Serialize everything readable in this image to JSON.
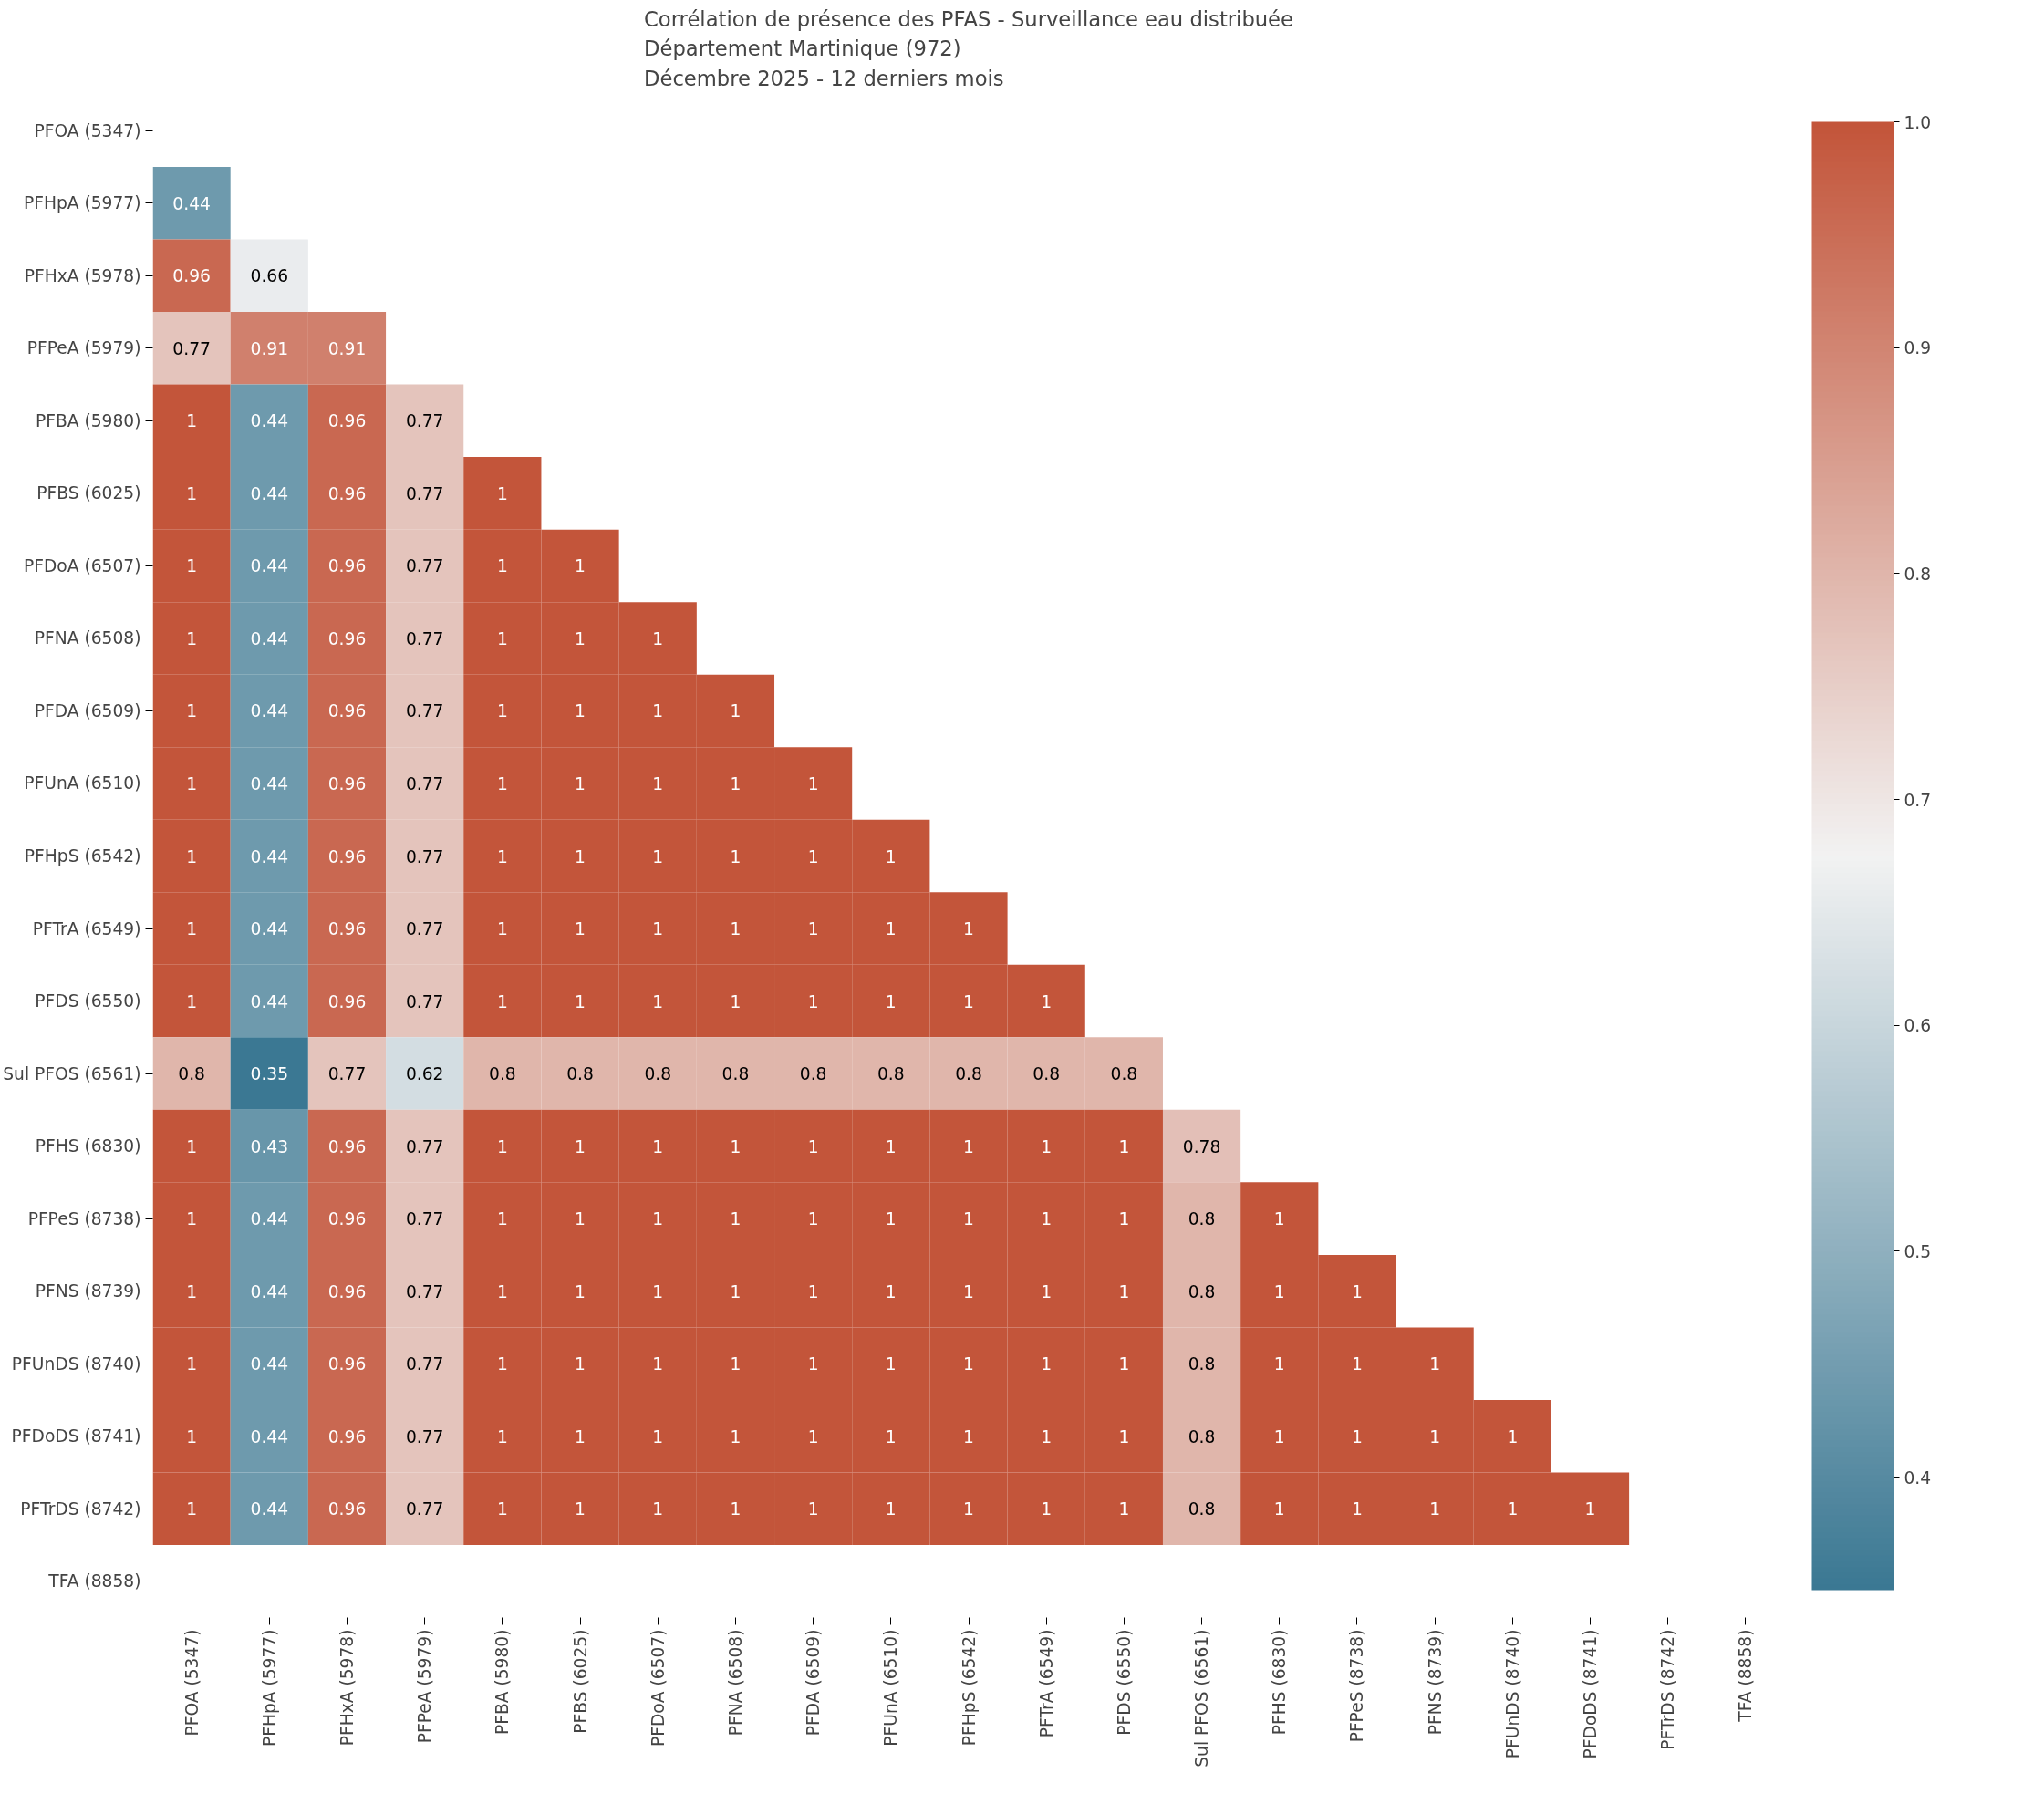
{
  "chart_data": {
    "type": "heatmap",
    "title": "Corrélation de présence des PFAS - Surveillance eau distribuée\nDépartement Martinique (972)\nDécembre 2025 - 12 derniers mois",
    "categories": [
      "PFOA (5347)",
      "PFHpA (5977)",
      "PFHxA (5978)",
      "PFPeA (5979)",
      "PFBA (5980)",
      "PFBS (6025)",
      "PFDoA (6507)",
      "PFNA (6508)",
      "PFDA (6509)",
      "PFUnA (6510)",
      "PFHpS (6542)",
      "PFTrA (6549)",
      "PFDS (6550)",
      "Sul PFOS (6561)",
      "PFHS (6830)",
      "PFPeS (8738)",
      "PFNS (8739)",
      "PFUnDS (8740)",
      "PFDoDS (8741)",
      "PFTrDS (8742)",
      "TFA (8858)"
    ],
    "y_categories": [
      "PFOA (5347)",
      "PFHpA (5977)",
      "PFHxA (5978)",
      "PFPeA (5979)",
      "PFBA (5980)",
      "PFBS (6025)",
      "PFDoA (6507)",
      "PFNA (6508)",
      "PFDA (6509)",
      "PFUnA (6510)",
      "PFHpS (6542)",
      "PFTrA (6549)",
      "PFDS (6550)",
      "Sul PFOS (6561)",
      "PFHS (6830)",
      "PFPeS (8738)",
      "PFNS (8739)",
      "PFUnDS (8740)",
      "PFDoDS (8741)",
      "PFTrDS (8742)",
      "TFA (8858)"
    ],
    "cells": [
      [
        null,
        null,
        null,
        null,
        null,
        null,
        null,
        null,
        null,
        null,
        null,
        null,
        null,
        null,
        null,
        null,
        null,
        null,
        null,
        null,
        null
      ],
      [
        0.44,
        null,
        null,
        null,
        null,
        null,
        null,
        null,
        null,
        null,
        null,
        null,
        null,
        null,
        null,
        null,
        null,
        null,
        null,
        null,
        null
      ],
      [
        0.96,
        0.66,
        null,
        null,
        null,
        null,
        null,
        null,
        null,
        null,
        null,
        null,
        null,
        null,
        null,
        null,
        null,
        null,
        null,
        null,
        null
      ],
      [
        0.77,
        0.91,
        0.91,
        null,
        null,
        null,
        null,
        null,
        null,
        null,
        null,
        null,
        null,
        null,
        null,
        null,
        null,
        null,
        null,
        null,
        null
      ],
      [
        1,
        0.44,
        0.96,
        0.77,
        null,
        null,
        null,
        null,
        null,
        null,
        null,
        null,
        null,
        null,
        null,
        null,
        null,
        null,
        null,
        null,
        null
      ],
      [
        1,
        0.44,
        0.96,
        0.77,
        1,
        null,
        null,
        null,
        null,
        null,
        null,
        null,
        null,
        null,
        null,
        null,
        null,
        null,
        null,
        null,
        null
      ],
      [
        1,
        0.44,
        0.96,
        0.77,
        1,
        1,
        null,
        null,
        null,
        null,
        null,
        null,
        null,
        null,
        null,
        null,
        null,
        null,
        null,
        null,
        null
      ],
      [
        1,
        0.44,
        0.96,
        0.77,
        1,
        1,
        1,
        null,
        null,
        null,
        null,
        null,
        null,
        null,
        null,
        null,
        null,
        null,
        null,
        null,
        null
      ],
      [
        1,
        0.44,
        0.96,
        0.77,
        1,
        1,
        1,
        1,
        null,
        null,
        null,
        null,
        null,
        null,
        null,
        null,
        null,
        null,
        null,
        null,
        null
      ],
      [
        1,
        0.44,
        0.96,
        0.77,
        1,
        1,
        1,
        1,
        1,
        null,
        null,
        null,
        null,
        null,
        null,
        null,
        null,
        null,
        null,
        null,
        null
      ],
      [
        1,
        0.44,
        0.96,
        0.77,
        1,
        1,
        1,
        1,
        1,
        1,
        null,
        null,
        null,
        null,
        null,
        null,
        null,
        null,
        null,
        null,
        null
      ],
      [
        1,
        0.44,
        0.96,
        0.77,
        1,
        1,
        1,
        1,
        1,
        1,
        1,
        null,
        null,
        null,
        null,
        null,
        null,
        null,
        null,
        null,
        null
      ],
      [
        1,
        0.44,
        0.96,
        0.77,
        1,
        1,
        1,
        1,
        1,
        1,
        1,
        1,
        null,
        null,
        null,
        null,
        null,
        null,
        null,
        null,
        null
      ],
      [
        0.8,
        0.35,
        0.77,
        0.62,
        0.8,
        0.8,
        0.8,
        0.8,
        0.8,
        0.8,
        0.8,
        0.8,
        0.8,
        null,
        null,
        null,
        null,
        null,
        null,
        null,
        null
      ],
      [
        1,
        0.43,
        0.96,
        0.77,
        1,
        1,
        1,
        1,
        1,
        1,
        1,
        1,
        1,
        0.78,
        null,
        null,
        null,
        null,
        null,
        null,
        null
      ],
      [
        1,
        0.44,
        0.96,
        0.77,
        1,
        1,
        1,
        1,
        1,
        1,
        1,
        1,
        1,
        0.8,
        1,
        null,
        null,
        null,
        null,
        null,
        null
      ],
      [
        1,
        0.44,
        0.96,
        0.77,
        1,
        1,
        1,
        1,
        1,
        1,
        1,
        1,
        1,
        0.8,
        1,
        1,
        null,
        null,
        null,
        null,
        null
      ],
      [
        1,
        0.44,
        0.96,
        0.77,
        1,
        1,
        1,
        1,
        1,
        1,
        1,
        1,
        1,
        0.8,
        1,
        1,
        1,
        null,
        null,
        null,
        null
      ],
      [
        1,
        0.44,
        0.96,
        0.77,
        1,
        1,
        1,
        1,
        1,
        1,
        1,
        1,
        1,
        0.8,
        1,
        1,
        1,
        1,
        null,
        null,
        null
      ],
      [
        1,
        0.44,
        0.96,
        0.77,
        1,
        1,
        1,
        1,
        1,
        1,
        1,
        1,
        1,
        0.8,
        1,
        1,
        1,
        1,
        1,
        null,
        null
      ],
      [
        null,
        null,
        null,
        null,
        null,
        null,
        null,
        null,
        null,
        null,
        null,
        null,
        null,
        null,
        null,
        null,
        null,
        null,
        null,
        null,
        null
      ]
    ],
    "clim": [
      0.35,
      1.0
    ],
    "cticks": [
      0.4,
      0.5,
      0.6,
      0.7,
      0.8,
      0.9,
      {
        "value": 1.0,
        "label": "1.0"
      }
    ],
    "data_labels": true
  }
}
